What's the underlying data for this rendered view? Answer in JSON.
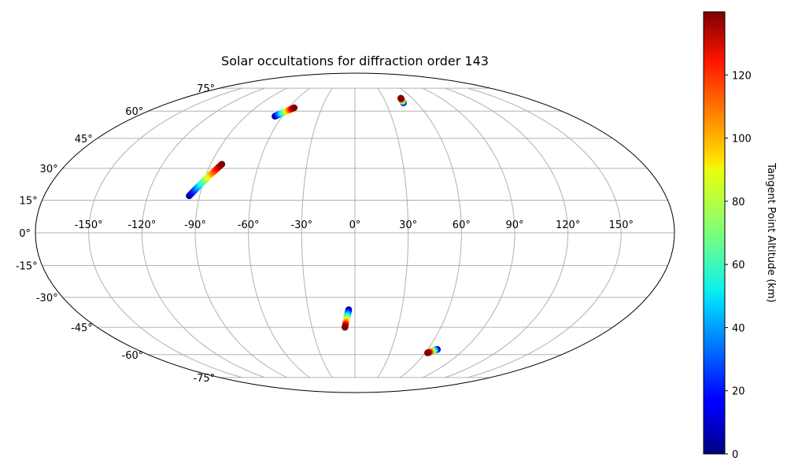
{
  "chart_data": {
    "type": "scatter",
    "projection": "mollweide",
    "title": "Solar occultations for diffraction order 143",
    "x_ticks": [
      "-150°",
      "-120°",
      "-90°",
      "-60°",
      "-30°",
      "0°",
      "30°",
      "60°",
      "90°",
      "120°",
      "150°"
    ],
    "x_tick_values": [
      -150,
      -120,
      -90,
      -60,
      -30,
      0,
      30,
      60,
      90,
      120,
      150
    ],
    "y_ticks": [
      "75°",
      "60°",
      "45°",
      "30°",
      "15°",
      "0°",
      "-15°",
      "-30°",
      "-45°",
      "-60°",
      "-75°"
    ],
    "y_tick_values": [
      75,
      60,
      45,
      30,
      15,
      0,
      -15,
      -30,
      -45,
      -60,
      -75
    ],
    "grid": true,
    "colorbar": {
      "label": "Tangent Point Altitude (km)",
      "colormap": "jet",
      "range": [
        0,
        140
      ],
      "ticks": [
        "0",
        "20",
        "40",
        "60",
        "80",
        "100",
        "120"
      ],
      "tick_values": [
        0,
        20,
        40,
        60,
        80,
        100,
        120
      ]
    },
    "series": [
      {
        "lon_range": [
          -96,
          -83
        ],
        "lat_range": [
          17,
          32
        ],
        "altitude_range": [
          0,
          140
        ]
      },
      {
        "lon_range": [
          -66,
          -55
        ],
        "lat_range": [
          57,
          62
        ],
        "altitude_range": [
          0,
          140
        ]
      },
      {
        "lon_range": [
          47,
          48
        ],
        "lat_range": [
          65,
          68
        ],
        "altitude_range": [
          0,
          140
        ]
      },
      {
        "lon_range": [
          -4,
          -7
        ],
        "lat_range": [
          -36,
          -45
        ],
        "altitude_range": [
          0,
          140
        ]
      },
      {
        "lon_range": [
          68,
          62
        ],
        "lat_range": [
          -57,
          -59
        ],
        "altitude_range": [
          0,
          140
        ]
      }
    ]
  }
}
